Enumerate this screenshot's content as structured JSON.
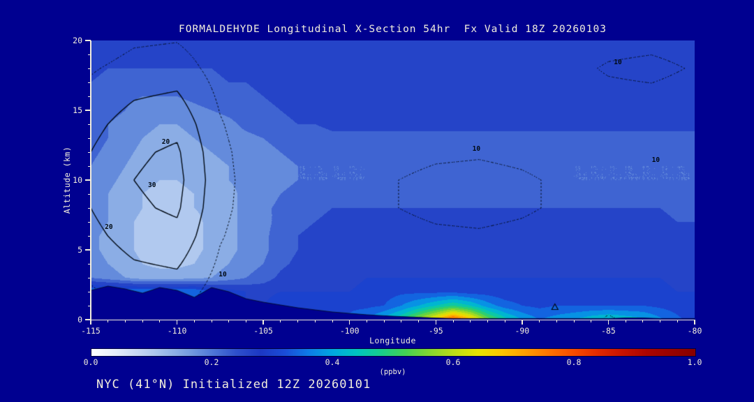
{
  "title": "FORMALDEHYDE Longitudinal X-Section 54hr  Fx Valid 18Z 20260103",
  "subtitle": "NYC (41°N) Initialized 12Z 20260101",
  "colors": {
    "background": "#000090",
    "text": "#f2eedd",
    "contour": "#000a14"
  },
  "chart_data": {
    "type": "heatmap",
    "subtype": "filled-contour-vertical-cross-section",
    "title": "FORMALDEHYDE Longitudinal X-Section 54hr  Fx Valid 18Z 20260103",
    "xlabel": "Longitude",
    "ylabel": "Altitude (km)",
    "units": "(ppbv)",
    "xlim": [
      -115,
      -80
    ],
    "ylim": [
      0,
      20
    ],
    "x_ticks": [
      -115,
      -110,
      -105,
      -100,
      -95,
      -90,
      -85,
      -80
    ],
    "y_ticks": [
      0,
      5,
      10,
      15,
      20
    ],
    "colorbar_ticks": [
      "0.0",
      "0.2",
      "0.4",
      "0.6",
      "0.8",
      "1.0"
    ],
    "level_step": 0.04,
    "colormap": [
      [
        0.0,
        "#ffffff"
      ],
      [
        0.04,
        "#e6edfb"
      ],
      [
        0.08,
        "#c4d5f3"
      ],
      [
        0.12,
        "#9ebcea"
      ],
      [
        0.16,
        "#789ee0"
      ],
      [
        0.2,
        "#4f78d8"
      ],
      [
        0.24,
        "#2e50cc"
      ],
      [
        0.28,
        "#1c38c4"
      ],
      [
        0.32,
        "#1a4cd8"
      ],
      [
        0.36,
        "#0d7ce8"
      ],
      [
        0.4,
        "#00a8e0"
      ],
      [
        0.44,
        "#00c4c0"
      ],
      [
        0.48,
        "#18cc8c"
      ],
      [
        0.52,
        "#44d054"
      ],
      [
        0.56,
        "#84d630"
      ],
      [
        0.6,
        "#bcdc18"
      ],
      [
        0.64,
        "#e8e400"
      ],
      [
        0.68,
        "#fcc400"
      ],
      [
        0.72,
        "#ff9c00"
      ],
      [
        0.76,
        "#ff7000"
      ],
      [
        0.8,
        "#f64a00"
      ],
      [
        0.84,
        "#e22800"
      ],
      [
        0.88,
        "#c81200"
      ],
      [
        0.92,
        "#ac0400"
      ],
      [
        1.0,
        "#860000"
      ]
    ],
    "field": {
      "x_start": -115,
      "x_step": 1,
      "y_start": 0,
      "y_step": 1,
      "values": [
        [
          0.3,
          0.3,
          0.3,
          0.3,
          0.3,
          0.3,
          0.3,
          0.3,
          0.3,
          0.3,
          0.3,
          0.3,
          0.33,
          0.33,
          0.33,
          0.33,
          0.36,
          0.42,
          0.48,
          0.58,
          0.68,
          0.8,
          0.7,
          0.55,
          0.46,
          0.4,
          0.36,
          0.38,
          0.4,
          0.43,
          0.45,
          0.43,
          0.41,
          0.37,
          0.33,
          0.3
        ],
        [
          0.28,
          0.28,
          0.28,
          0.28,
          0.28,
          0.28,
          0.28,
          0.28,
          0.28,
          0.28,
          0.28,
          0.3,
          0.31,
          0.31,
          0.31,
          0.31,
          0.31,
          0.32,
          0.36,
          0.4,
          0.44,
          0.48,
          0.44,
          0.38,
          0.34,
          0.32,
          0.31,
          0.32,
          0.32,
          0.32,
          0.32,
          0.32,
          0.32,
          0.31,
          0.3,
          0.29
        ],
        [
          0.36,
          0.36,
          0.36,
          0.36,
          0.36,
          0.36,
          0.36,
          0.32,
          0.3,
          0.28,
          0.27,
          0.28,
          0.28,
          0.28,
          0.28,
          0.28,
          0.29,
          0.3,
          0.31,
          0.31,
          0.31,
          0.31,
          0.3,
          0.3,
          0.29,
          0.29,
          0.29,
          0.29,
          0.29,
          0.29,
          0.29,
          0.29,
          0.29,
          0.29,
          0.28,
          0.28
        ],
        [
          0.2,
          0.18,
          0.16,
          0.14,
          0.14,
          0.14,
          0.15,
          0.16,
          0.18,
          0.2,
          0.22,
          0.25,
          0.27,
          0.27,
          0.27,
          0.27,
          0.28,
          0.28,
          0.28,
          0.28,
          0.28,
          0.28,
          0.28,
          0.28,
          0.28,
          0.28,
          0.28,
          0.28,
          0.28,
          0.28,
          0.28,
          0.28,
          0.28,
          0.28,
          0.27,
          0.27
        ],
        [
          0.18,
          0.16,
          0.14,
          0.12,
          0.11,
          0.11,
          0.12,
          0.14,
          0.16,
          0.18,
          0.2,
          0.23,
          0.25,
          0.26,
          0.26,
          0.26,
          0.27,
          0.27,
          0.27,
          0.27,
          0.27,
          0.27,
          0.27,
          0.27,
          0.27,
          0.27,
          0.27,
          0.27,
          0.27,
          0.27,
          0.27,
          0.27,
          0.27,
          0.27,
          0.26,
          0.26
        ],
        [
          0.17,
          0.15,
          0.13,
          0.11,
          0.1,
          0.1,
          0.11,
          0.13,
          0.15,
          0.17,
          0.19,
          0.22,
          0.24,
          0.25,
          0.25,
          0.26,
          0.26,
          0.26,
          0.26,
          0.26,
          0.26,
          0.26,
          0.26,
          0.26,
          0.26,
          0.26,
          0.26,
          0.26,
          0.26,
          0.26,
          0.26,
          0.26,
          0.26,
          0.26,
          0.25,
          0.25
        ],
        [
          0.17,
          0.15,
          0.13,
          0.11,
          0.1,
          0.1,
          0.11,
          0.13,
          0.15,
          0.17,
          0.19,
          0.22,
          0.24,
          0.25,
          0.25,
          0.25,
          0.26,
          0.26,
          0.26,
          0.26,
          0.26,
          0.26,
          0.26,
          0.26,
          0.26,
          0.26,
          0.26,
          0.26,
          0.26,
          0.26,
          0.26,
          0.26,
          0.26,
          0.25,
          0.25,
          0.25
        ],
        [
          0.18,
          0.16,
          0.13,
          0.11,
          0.1,
          0.1,
          0.11,
          0.13,
          0.15,
          0.17,
          0.19,
          0.21,
          0.23,
          0.24,
          0.25,
          0.25,
          0.25,
          0.25,
          0.25,
          0.25,
          0.25,
          0.25,
          0.25,
          0.25,
          0.25,
          0.25,
          0.25,
          0.25,
          0.25,
          0.25,
          0.25,
          0.25,
          0.25,
          0.25,
          0.24,
          0.24
        ],
        [
          0.18,
          0.16,
          0.14,
          0.12,
          0.11,
          0.11,
          0.12,
          0.13,
          0.15,
          0.17,
          0.19,
          0.21,
          0.22,
          0.23,
          0.24,
          0.24,
          0.24,
          0.24,
          0.24,
          0.24,
          0.24,
          0.24,
          0.24,
          0.24,
          0.24,
          0.24,
          0.24,
          0.24,
          0.24,
          0.24,
          0.24,
          0.24,
          0.24,
          0.24,
          0.23,
          0.23
        ],
        [
          0.18,
          0.16,
          0.14,
          0.12,
          0.11,
          0.11,
          0.12,
          0.14,
          0.15,
          0.17,
          0.18,
          0.2,
          0.21,
          0.21,
          0.22,
          0.22,
          0.22,
          0.22,
          0.22,
          0.22,
          0.22,
          0.22,
          0.22,
          0.22,
          0.22,
          0.22,
          0.22,
          0.22,
          0.22,
          0.22,
          0.22,
          0.22,
          0.22,
          0.22,
          0.21,
          0.21
        ],
        [
          0.19,
          0.17,
          0.15,
          0.13,
          0.12,
          0.12,
          0.13,
          0.14,
          0.16,
          0.17,
          0.18,
          0.19,
          0.2,
          0.2,
          0.2,
          0.2,
          0.2,
          0.21,
          0.21,
          0.21,
          0.21,
          0.21,
          0.21,
          0.21,
          0.21,
          0.21,
          0.21,
          0.21,
          0.2,
          0.2,
          0.2,
          0.2,
          0.2,
          0.2,
          0.2,
          0.2
        ],
        [
          0.2,
          0.18,
          0.16,
          0.14,
          0.13,
          0.13,
          0.14,
          0.15,
          0.16,
          0.17,
          0.18,
          0.19,
          0.2,
          0.2,
          0.2,
          0.2,
          0.2,
          0.2,
          0.2,
          0.2,
          0.2,
          0.2,
          0.2,
          0.2,
          0.2,
          0.2,
          0.2,
          0.2,
          0.2,
          0.2,
          0.2,
          0.2,
          0.2,
          0.2,
          0.2,
          0.2
        ],
        [
          0.21,
          0.19,
          0.17,
          0.15,
          0.14,
          0.14,
          0.15,
          0.16,
          0.17,
          0.18,
          0.19,
          0.2,
          0.21,
          0.21,
          0.21,
          0.21,
          0.21,
          0.21,
          0.21,
          0.21,
          0.21,
          0.21,
          0.21,
          0.21,
          0.21,
          0.21,
          0.21,
          0.21,
          0.21,
          0.21,
          0.21,
          0.21,
          0.21,
          0.21,
          0.21,
          0.21
        ],
        [
          0.22,
          0.2,
          0.18,
          0.16,
          0.15,
          0.15,
          0.16,
          0.17,
          0.18,
          0.19,
          0.2,
          0.21,
          0.22,
          0.22,
          0.23,
          0.23,
          0.23,
          0.23,
          0.23,
          0.23,
          0.23,
          0.23,
          0.23,
          0.23,
          0.23,
          0.23,
          0.23,
          0.23,
          0.23,
          0.23,
          0.23,
          0.23,
          0.23,
          0.23,
          0.23,
          0.23
        ],
        [
          0.22,
          0.2,
          0.19,
          0.17,
          0.16,
          0.16,
          0.17,
          0.18,
          0.19,
          0.21,
          0.22,
          0.23,
          0.24,
          0.24,
          0.25,
          0.25,
          0.25,
          0.25,
          0.25,
          0.25,
          0.25,
          0.25,
          0.25,
          0.25,
          0.25,
          0.25,
          0.25,
          0.25,
          0.25,
          0.25,
          0.25,
          0.25,
          0.25,
          0.25,
          0.25,
          0.25
        ],
        [
          0.22,
          0.21,
          0.2,
          0.18,
          0.18,
          0.18,
          0.19,
          0.2,
          0.21,
          0.22,
          0.23,
          0.24,
          0.25,
          0.25,
          0.26,
          0.26,
          0.26,
          0.26,
          0.26,
          0.26,
          0.26,
          0.26,
          0.26,
          0.26,
          0.26,
          0.26,
          0.26,
          0.26,
          0.26,
          0.26,
          0.26,
          0.26,
          0.26,
          0.26,
          0.26,
          0.26
        ],
        [
          0.23,
          0.22,
          0.21,
          0.2,
          0.2,
          0.2,
          0.21,
          0.22,
          0.22,
          0.23,
          0.24,
          0.25,
          0.26,
          0.26,
          0.26,
          0.26,
          0.26,
          0.26,
          0.26,
          0.26,
          0.26,
          0.26,
          0.26,
          0.26,
          0.26,
          0.26,
          0.26,
          0.26,
          0.26,
          0.26,
          0.26,
          0.26,
          0.26,
          0.26,
          0.26,
          0.26
        ],
        [
          0.24,
          0.23,
          0.23,
          0.22,
          0.22,
          0.22,
          0.23,
          0.23,
          0.24,
          0.24,
          0.25,
          0.25,
          0.26,
          0.26,
          0.26,
          0.26,
          0.26,
          0.26,
          0.26,
          0.26,
          0.26,
          0.26,
          0.26,
          0.26,
          0.26,
          0.26,
          0.26,
          0.26,
          0.26,
          0.26,
          0.26,
          0.26,
          0.26,
          0.26,
          0.26,
          0.26
        ],
        [
          0.25,
          0.24,
          0.24,
          0.24,
          0.24,
          0.24,
          0.24,
          0.24,
          0.25,
          0.25,
          0.25,
          0.26,
          0.26,
          0.26,
          0.26,
          0.26,
          0.26,
          0.26,
          0.26,
          0.26,
          0.26,
          0.26,
          0.26,
          0.26,
          0.26,
          0.26,
          0.26,
          0.26,
          0.26,
          0.26,
          0.26,
          0.26,
          0.26,
          0.26,
          0.26,
          0.26
        ],
        [
          0.25,
          0.25,
          0.25,
          0.25,
          0.25,
          0.25,
          0.25,
          0.25,
          0.25,
          0.26,
          0.26,
          0.26,
          0.26,
          0.26,
          0.26,
          0.26,
          0.26,
          0.26,
          0.26,
          0.26,
          0.26,
          0.26,
          0.26,
          0.26,
          0.26,
          0.26,
          0.26,
          0.26,
          0.26,
          0.26,
          0.26,
          0.26,
          0.26,
          0.26,
          0.26,
          0.26
        ],
        [
          0.25,
          0.25,
          0.25,
          0.25,
          0.25,
          0.25,
          0.25,
          0.25,
          0.25,
          0.26,
          0.26,
          0.26,
          0.26,
          0.26,
          0.26,
          0.26,
          0.26,
          0.26,
          0.26,
          0.26,
          0.26,
          0.26,
          0.26,
          0.26,
          0.26,
          0.26,
          0.26,
          0.26,
          0.26,
          0.26,
          0.26,
          0.26,
          0.26,
          0.26,
          0.26,
          0.26
        ]
      ]
    },
    "terrain": {
      "x_start": -115,
      "x_step": 1,
      "heights": [
        2.1,
        2.4,
        2.2,
        1.9,
        2.3,
        2.1,
        1.6,
        2.3,
        2.0,
        1.5,
        1.25,
        1.05,
        0.85,
        0.7,
        0.55,
        0.45,
        0.35,
        0.28,
        0.22,
        0.17,
        0.12,
        0.08,
        0.08,
        0.08,
        0.08,
        0.08,
        0.08,
        0.08,
        0.08,
        0.08,
        0.08,
        0.12,
        0.12,
        0.08,
        0.08,
        0.08
      ]
    },
    "overlay_contours": {
      "x_start": -115,
      "x_step": 2.5,
      "y_start": 0,
      "y_step": 2,
      "levels_dotted": [
        10
      ],
      "levels_solid": [
        20,
        30
      ],
      "values": [
        [
          4.0,
          8.7,
          9.6,
          3.8,
          0.6,
          0.2,
          0.3,
          0.4,
          0.5,
          0.5,
          0.5,
          1.7,
          11.5,
          4.3,
          0.1
        ],
        [
          9.0,
          13.5,
          14.9,
          5.9,
          1.2,
          0.6,
          1.0,
          1.4,
          1.7,
          1.8,
          1.6,
          1.5,
          2.7,
          1.2,
          0.3
        ],
        [
          13.0,
          19.2,
          21.2,
          8.4,
          2.5,
          1.6,
          2.6,
          3.7,
          4.6,
          4.8,
          4.3,
          3.3,
          2.2,
          1.2,
          0.6
        ],
        [
          17.0,
          24.6,
          27.2,
          10.8,
          3.1,
          3.0,
          5.0,
          7.1,
          8.6,
          9.1,
          8.1,
          6.3,
          4.1,
          2.3,
          1.1
        ],
        [
          20.0,
          28.5,
          31.5,
          12.5,
          3.9,
          4.1,
          6.8,
          9.7,
          11.9,
          12.5,
          11.1,
          8.6,
          5.7,
          3.2,
          1.5
        ],
        [
          21.0,
          30.0,
          33.2,
          13.2,
          4.0,
          4.1,
          6.8,
          9.7,
          11.9,
          12.5,
          11.1,
          8.6,
          5.7,
          3.2,
          1.5
        ],
        [
          20.0,
          28.5,
          31.5,
          12.5,
          3.3,
          3.0,
          5.0,
          7.1,
          8.6,
          9.1,
          8.1,
          6.3,
          4.1,
          2.3,
          1.1
        ],
        [
          17.0,
          24.6,
          27.2,
          10.8,
          2.2,
          1.6,
          2.6,
          3.7,
          4.6,
          4.8,
          4.3,
          3.3,
          3.1,
          2.2,
          1.3
        ],
        [
          13.0,
          19.2,
          21.2,
          8.4,
          1.3,
          0.6,
          1.0,
          1.4,
          1.7,
          1.8,
          1.6,
          4.4,
          6.7,
          7.3,
          5.0
        ],
        [
          9.0,
          13.5,
          14.9,
          5.9,
          0.7,
          0.2,
          0.3,
          0.4,
          0.5,
          0.5,
          0.5,
          6.2,
          11.3,
          13.0,
          9.1
        ],
        [
          4.0,
          8.7,
          9.6,
          3.8,
          0.4,
          0.1,
          0.1,
          0.2,
          0.2,
          0.2,
          0.2,
          3.2,
          5.9,
          6.8,
          4.8
        ]
      ]
    },
    "contour_labels": [
      {
        "text": "20",
        "lon": -113.9,
        "alt": 6.6
      },
      {
        "text": "30",
        "lon": -111.4,
        "alt": 9.6
      },
      {
        "text": "20",
        "lon": -110.6,
        "alt": 12.7
      },
      {
        "text": "10",
        "lon": -107.3,
        "alt": 3.2
      },
      {
        "text": "10",
        "lon": -92.6,
        "alt": 12.2
      },
      {
        "text": "10",
        "lon": -82.2,
        "alt": 11.4
      },
      {
        "text": "10",
        "lon": -84.4,
        "alt": 18.4
      }
    ],
    "markers": [
      {
        "type": "triangle",
        "lon": -88.1,
        "alt": 0.9
      }
    ]
  }
}
